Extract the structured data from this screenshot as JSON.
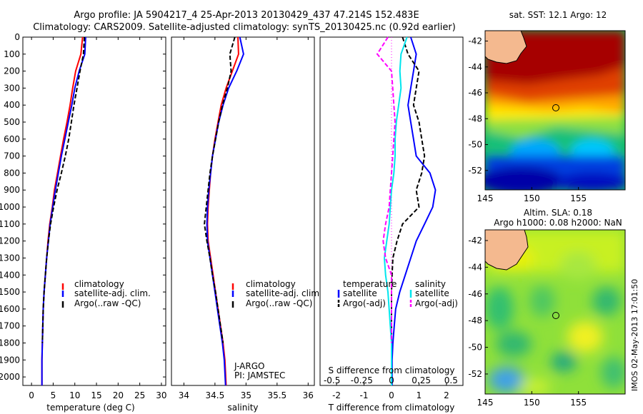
{
  "header": {
    "line1": "Argo profile: JA 5904217_4 25-Apr-2013 20130429_437 47.214S 152.483E",
    "line2": "Climatology: CARS2009. Satellite-adjusted climatology: synTS_20130425.nc (0.92d earlier)"
  },
  "colors": {
    "climatology": "#ff0000",
    "satellite": "#0000ff",
    "argo": "#000000",
    "sat_salinity": "#00e5ee",
    "argo_salinity": "#ff00ff",
    "land": "#f4b98f"
  },
  "depth_ticks": [
    "0",
    "100",
    "200",
    "300",
    "400",
    "500",
    "600",
    "700",
    "800",
    "900",
    "1000",
    "1100",
    "1200",
    "1300",
    "1400",
    "1500",
    "1600",
    "1700",
    "1800",
    "1900",
    "2000"
  ],
  "depth_values": [
    0,
    100,
    200,
    300,
    400,
    500,
    600,
    700,
    800,
    900,
    1000,
    1100,
    1200,
    1300,
    1400,
    1500,
    1600,
    1700,
    1800,
    1900,
    2000
  ],
  "panels": {
    "temperature": {
      "xlabel": "temperature (deg C)",
      "xticks": [
        "0",
        "5",
        "10",
        "15",
        "20",
        "25",
        "30"
      ],
      "legend": [
        "climatology",
        "satellite-adj. clim.",
        "Argo(..raw -QC)"
      ]
    },
    "salinity": {
      "xlabel": "salinity",
      "xticks": [
        "34",
        "34.5",
        "35",
        "35.5",
        "36"
      ],
      "legend": [
        "climatology",
        "satellite-adj. clim.",
        "Argo(..raw -QC)"
      ],
      "note1": "J-ARGO",
      "note2": "PI: JAMSTEC"
    },
    "difference": {
      "xlabel": "T difference from climatology",
      "xticks": [
        "-2",
        "-1",
        "0",
        "1",
        "2"
      ],
      "top_label": "S difference from climatology",
      "s_ticks": [
        "-0.5",
        "-0.25",
        "0",
        "0.25",
        "0.5"
      ],
      "legend_t_title": "temperature",
      "legend_s_title": "salinity",
      "legend_t": [
        "satellite",
        "Argo(-adj)"
      ],
      "legend_s": [
        "satellite",
        "Argo(-adj)"
      ]
    }
  },
  "maps": {
    "sst": {
      "title": "sat. SST: 12.1 Argo: 12",
      "yticks": [
        "-42",
        "-44",
        "-46",
        "-48",
        "-50",
        "-52"
      ],
      "xticks": [
        "145",
        "150",
        "155"
      ],
      "marker": {
        "lon": 152.483,
        "lat": -47.214
      }
    },
    "sla": {
      "title1": "Altim. SLA: 0.18",
      "title2": "Argo h1000: 0.08 h2000: NaN",
      "yticks": [
        "-42",
        "-44",
        "-46",
        "-48",
        "-50",
        "-52"
      ],
      "xticks": [
        "145",
        "150",
        "155"
      ],
      "marker": {
        "lon": 152.483,
        "lat": -47.214
      }
    }
  },
  "stamp": "IMOS 02-May-2013 17:01:50",
  "chart_data": [
    {
      "type": "line",
      "title": "",
      "xlabel": "temperature (deg C)",
      "ylabel": "",
      "xlim": [
        -2,
        31
      ],
      "ylim": [
        2050,
        0
      ],
      "series": [
        {
          "name": "climatology",
          "x": [
            11.8,
            11.4,
            10.2,
            9.5,
            8.9,
            8.2,
            7.4,
            6.7,
            6.0,
            5.3,
            4.8,
            4.2,
            3.8,
            3.5,
            3.2,
            2.9,
            2.7,
            2.6,
            2.5,
            2.4,
            2.4
          ],
          "y": [
            0,
            100,
            200,
            300,
            400,
            500,
            600,
            700,
            800,
            900,
            1000,
            1100,
            1200,
            1300,
            1400,
            1500,
            1600,
            1700,
            1800,
            1900,
            2050
          ]
        },
        {
          "name": "satellite-adj. clim.",
          "x": [
            12.5,
            12.3,
            11.0,
            10.0,
            9.3,
            8.5,
            7.7,
            6.9,
            6.2,
            5.5,
            4.9,
            4.3,
            3.9,
            3.5,
            3.2,
            2.9,
            2.7,
            2.6,
            2.5,
            2.4,
            2.4
          ],
          "y": [
            0,
            100,
            200,
            300,
            400,
            500,
            600,
            700,
            800,
            900,
            1000,
            1100,
            1200,
            1300,
            1400,
            1500,
            1600,
            1700,
            1800,
            1900,
            2050
          ]
        },
        {
          "name": "Argo(..raw -QC)",
          "x": [
            12.2,
            12.0,
            11.2,
            10.5,
            9.8,
            9.2,
            8.6,
            7.8,
            6.9,
            5.9,
            5.1,
            4.4,
            3.9,
            3.5,
            3.2,
            2.9,
            2.7,
            2.6,
            2.5
          ],
          "y": [
            0,
            100,
            200,
            300,
            400,
            500,
            600,
            700,
            800,
            900,
            1000,
            1100,
            1200,
            1300,
            1400,
            1500,
            1600,
            1700,
            1800
          ]
        }
      ]
    },
    {
      "type": "line",
      "title": "",
      "xlabel": "salinity",
      "ylabel": "",
      "xlim": [
        33.8,
        36.1
      ],
      "ylim": [
        2050,
        0
      ],
      "series": [
        {
          "name": "climatology",
          "x": [
            34.87,
            34.88,
            34.78,
            34.68,
            34.6,
            34.55,
            34.5,
            34.46,
            34.43,
            34.41,
            34.39,
            34.38,
            34.39,
            34.43,
            34.47,
            34.51,
            34.55,
            34.59,
            34.63,
            34.66,
            34.68
          ],
          "y": [
            0,
            100,
            200,
            300,
            400,
            500,
            600,
            700,
            800,
            900,
            1000,
            1100,
            1200,
            1300,
            1400,
            1500,
            1600,
            1700,
            1800,
            1900,
            2050
          ]
        },
        {
          "name": "satellite-adj. clim.",
          "x": [
            34.9,
            34.96,
            34.85,
            34.72,
            34.63,
            34.56,
            34.51,
            34.46,
            34.43,
            34.4,
            34.38,
            34.37,
            34.38,
            34.42,
            34.46,
            34.5,
            34.54,
            34.58,
            34.62,
            34.65,
            34.67
          ],
          "y": [
            0,
            100,
            200,
            300,
            400,
            500,
            600,
            700,
            800,
            900,
            1000,
            1100,
            1200,
            1300,
            1400,
            1500,
            1600,
            1700,
            1800,
            1900,
            2050
          ]
        },
        {
          "name": "Argo(..raw -QC)",
          "x": [
            34.82,
            34.74,
            34.76,
            34.7,
            34.62,
            34.56,
            34.51,
            34.46,
            34.42,
            34.39,
            34.36,
            34.33,
            34.37,
            34.42,
            34.46,
            34.51,
            34.55,
            34.59,
            34.63
          ],
          "y": [
            0,
            100,
            200,
            300,
            400,
            500,
            600,
            700,
            800,
            900,
            1000,
            1100,
            1200,
            1300,
            1400,
            1500,
            1600,
            1700,
            1800
          ]
        }
      ]
    },
    {
      "type": "line",
      "title": "",
      "xlabel": "T difference from climatology",
      "ylabel": "",
      "xlim": [
        -2.6,
        2.6
      ],
      "ylim": [
        2050,
        0
      ],
      "series": [
        {
          "name": "temperature satellite",
          "x": [
            0.7,
            0.9,
            0.8,
            0.7,
            0.6,
            0.7,
            0.8,
            0.9,
            1.4,
            1.6,
            1.5,
            1.2,
            0.9,
            0.7,
            0.5,
            0.3,
            0.15,
            0.1,
            0.05,
            0.02,
            0.02
          ],
          "y": [
            0,
            100,
            200,
            300,
            400,
            500,
            600,
            700,
            800,
            900,
            1000,
            1100,
            1200,
            1300,
            1400,
            1500,
            1600,
            1700,
            1800,
            1900,
            2050
          ]
        },
        {
          "name": "temperature Argo(-adj)",
          "x": [
            0.4,
            0.6,
            1.0,
            0.9,
            0.8,
            1.0,
            1.1,
            1.2,
            1.1,
            0.9,
            1.0,
            0.4,
            0.2,
            0.05,
            0.02,
            0.0,
            0.0,
            0.0,
            0.0
          ],
          "y": [
            0,
            100,
            200,
            300,
            400,
            500,
            600,
            700,
            800,
            900,
            1000,
            1100,
            1200,
            1300,
            1400,
            1500,
            1600,
            1700,
            1800
          ]
        },
        {
          "name": "salinity satellite",
          "x": [
            0.13,
            0.08,
            0.07,
            0.08,
            0.06,
            0.04,
            0.03,
            0.03,
            0.02,
            0.0,
            -0.01,
            -0.02,
            -0.04,
            -0.06,
            -0.05,
            -0.03,
            -0.02,
            -0.01,
            0.0,
            0.0,
            0.0
          ],
          "y": [
            0,
            100,
            200,
            300,
            400,
            500,
            600,
            700,
            800,
            900,
            1000,
            1100,
            1200,
            1300,
            1400,
            1500,
            1600,
            1700,
            1800,
            1900,
            2050
          ]
        },
        {
          "name": "salinity Argo(-adj)",
          "x": [
            -0.03,
            -0.12,
            0.0,
            0.01,
            0.02,
            0.03,
            0.02,
            0.01,
            0.0,
            -0.01,
            -0.02,
            -0.05,
            -0.07,
            -0.05,
            0.0,
            0.0,
            0.0,
            0.0,
            0.0
          ],
          "y": [
            0,
            100,
            200,
            300,
            400,
            500,
            600,
            700,
            800,
            900,
            1000,
            1100,
            1200,
            1300,
            1400,
            1500,
            1600,
            1700,
            1800
          ]
        }
      ]
    }
  ]
}
